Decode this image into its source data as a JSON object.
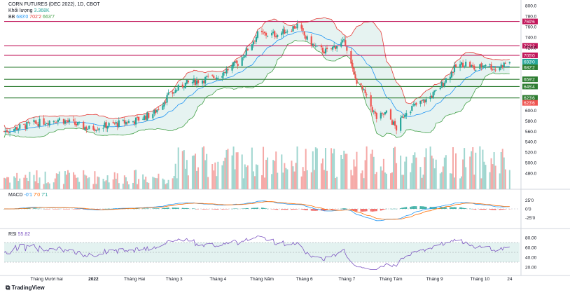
{
  "header": {
    "title": "CORN FUTURES (DEC 2022), 1D, CBOT",
    "volume_label": "Khối lượng",
    "volume_value": "3.368K",
    "bb_label": "BB",
    "bb_values": [
      "683'0",
      "702'2",
      "663'7"
    ],
    "macd_label": "MACD",
    "macd_values": [
      "-0'1",
      "7'0",
      "7'1"
    ],
    "rsi_label": "RSI",
    "rsi_value": "55.82"
  },
  "watermark": "TradingView",
  "colors": {
    "up": "#26a69a",
    "down": "#ef5350",
    "resistance": "#c2185b",
    "support": "#2e7d32",
    "bb_basis": "#2196f3",
    "bb_upper": "#e53935",
    "bb_lower": "#43a047",
    "bb_fill": "#e0f0ee",
    "macd_line": "#2196f3",
    "signal_line": "#ff6d00",
    "rsi_line": "#7e57c2",
    "rsi_band": "#e3f2f0"
  },
  "chart_data": {
    "type": "candlestick",
    "price_axis": {
      "min": 460,
      "max": 800,
      "ticks": [
        800,
        780,
        760,
        740,
        720,
        700,
        680,
        660,
        640,
        620,
        600,
        580,
        560,
        540,
        520,
        500,
        480
      ]
    },
    "x_labels": [
      "Tháng Mười hai",
      "2022",
      "Tháng Hai",
      "Tháng 3",
      "Tháng 4",
      "Tháng Năm",
      "Tháng 6",
      "Tháng 7",
      "Tháng Tám",
      "Tháng 9",
      "Tháng 10",
      "24"
    ],
    "x_label_dates": [
      "2021-12-01",
      "2022-01-03",
      "2022-02-01",
      "2022-03-01",
      "2022-04-01",
      "2022-05-02",
      "2022-06-01",
      "2022-07-01",
      "2022-08-01",
      "2022-09-01",
      "2022-10-03",
      "2022-10-24"
    ],
    "price_keypoints": [
      {
        "date": "2021-11-01",
        "close": 560
      },
      {
        "date": "2021-11-22",
        "close": 575
      },
      {
        "date": "2021-12-10",
        "close": 583
      },
      {
        "date": "2021-12-31",
        "close": 565
      },
      {
        "date": "2022-01-14",
        "close": 572
      },
      {
        "date": "2022-02-01",
        "close": 580
      },
      {
        "date": "2022-02-15",
        "close": 595
      },
      {
        "date": "2022-02-24",
        "close": 625
      },
      {
        "date": "2022-03-08",
        "close": 650
      },
      {
        "date": "2022-03-31",
        "close": 665
      },
      {
        "date": "2022-04-15",
        "close": 690
      },
      {
        "date": "2022-04-29",
        "close": 745
      },
      {
        "date": "2022-05-13",
        "close": 745
      },
      {
        "date": "2022-05-27",
        "close": 762
      },
      {
        "date": "2022-06-03",
        "close": 735
      },
      {
        "date": "2022-06-10",
        "close": 718
      },
      {
        "date": "2022-06-17",
        "close": 712
      },
      {
        "date": "2022-06-24",
        "close": 725
      },
      {
        "date": "2022-06-30",
        "close": 730
      },
      {
        "date": "2022-07-06",
        "close": 665
      },
      {
        "date": "2022-07-14",
        "close": 630
      },
      {
        "date": "2022-07-22",
        "close": 585
      },
      {
        "date": "2022-07-29",
        "close": 595
      },
      {
        "date": "2022-08-05",
        "close": 565
      },
      {
        "date": "2022-08-12",
        "close": 600
      },
      {
        "date": "2022-08-19",
        "close": 610
      },
      {
        "date": "2022-08-26",
        "close": 620
      },
      {
        "date": "2022-09-02",
        "close": 635
      },
      {
        "date": "2022-09-09",
        "close": 660
      },
      {
        "date": "2022-09-16",
        "close": 683
      },
      {
        "date": "2022-09-23",
        "close": 690
      },
      {
        "date": "2022-09-30",
        "close": 678
      },
      {
        "date": "2022-10-07",
        "close": 690
      },
      {
        "date": "2022-10-14",
        "close": 678
      },
      {
        "date": "2022-10-21",
        "close": 690
      },
      {
        "date": "2022-10-24",
        "close": 692
      }
    ],
    "levels": [
      {
        "label": "769'6",
        "value": 769.75,
        "kind": "resistance"
      },
      {
        "label": "723'2",
        "value": 723.25,
        "kind": "resistance"
      },
      {
        "label": "705'0",
        "value": 705.0,
        "kind": "resistance"
      },
      {
        "label": "693'0",
        "value": 693.0,
        "kind": "current"
      },
      {
        "label": "682'2",
        "value": 682.25,
        "kind": "support"
      },
      {
        "label": "659'2",
        "value": 659.25,
        "kind": "support"
      },
      {
        "label": "645'4",
        "value": 645.5,
        "kind": "support"
      },
      {
        "label": "623'6",
        "value": 623.75,
        "kind": "support"
      },
      {
        "label": "623'6",
        "value": 623.75,
        "kind": "support-low"
      }
    ],
    "macd_axis": {
      "ticks": [
        "25'0",
        "0'0",
        "-25'0"
      ],
      "values": [
        25,
        0,
        -25
      ],
      "min": -40,
      "max": 40
    },
    "rsi_axis": {
      "ticks": [
        "80.00",
        "60.00",
        "40.00",
        "20.00"
      ],
      "values": [
        80,
        60,
        40,
        20
      ],
      "min": 10,
      "max": 90,
      "band": [
        30,
        70
      ],
      "mid": 50
    }
  }
}
